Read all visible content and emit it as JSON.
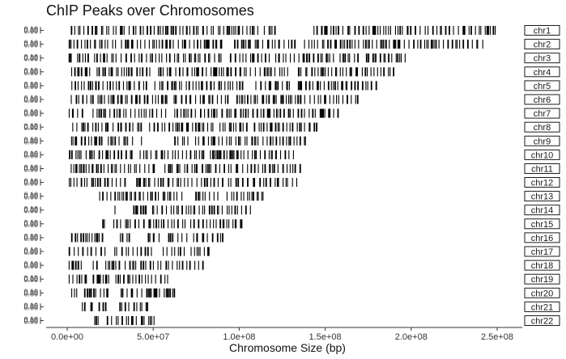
{
  "chart_data": {
    "type": "strip",
    "title": "ChIP Peaks over Chromosomes",
    "xlabel": "Chromosome Size (bp)",
    "ylabel": "",
    "xlim": [
      -25000000,
      275000000
    ],
    "x_ticks": [
      0,
      50000000,
      100000000,
      150000000,
      200000000,
      250000000
    ],
    "x_tick_labels": [
      "0.0e+00",
      "5.0e+07",
      "1.0e+08",
      "1.5e+08",
      "2.0e+08",
      "2.5e+08"
    ],
    "panel_y_tick_labels": [
      "0.00",
      "0.05",
      "0.10"
    ],
    "grid": false,
    "legend": "none",
    "color": "#000000",
    "facets": [
      {
        "chrom": "chr1",
        "start": 0,
        "end": 248956422,
        "gaps": [
          [
            44000000,
            46000000
          ],
          [
            112000000,
            113000000
          ],
          [
            121000000,
            143000000
          ],
          [
            200000000,
            201000000
          ],
          [
            222000000,
            223000000
          ],
          [
            236000000,
            237000000
          ]
        ]
      },
      {
        "chrom": "chr2",
        "start": 0,
        "end": 242193529,
        "gaps": [
          [
            28000000,
            30000000
          ],
          [
            74000000,
            75000000
          ],
          [
            90000000,
            96000000
          ],
          [
            133000000,
            137000000
          ],
          [
            193000000,
            194000000
          ],
          [
            212000000,
            213000000
          ]
        ]
      },
      {
        "chrom": "chr3",
        "start": 0,
        "end": 198295559,
        "gaps": [
          [
            4000000,
            5000000
          ],
          [
            12000000,
            13000000
          ],
          [
            90000000,
            94000000
          ],
          [
            118000000,
            121000000
          ],
          [
            155000000,
            157000000
          ],
          [
            170000000,
            171000000
          ]
        ]
      },
      {
        "chrom": "chr4",
        "start": 0,
        "end": 190214555,
        "gaps": [
          [
            14000000,
            17000000
          ],
          [
            49000000,
            52000000
          ],
          [
            60000000,
            61000000
          ],
          [
            130000000,
            134000000
          ],
          [
            150000000,
            151000000
          ]
        ]
      },
      {
        "chrom": "chr5",
        "start": 0,
        "end": 181538259,
        "gaps": [
          [
            21000000,
            23000000
          ],
          [
            46000000,
            50000000
          ],
          [
            103000000,
            108000000
          ],
          [
            131000000,
            133000000
          ],
          [
            150000000,
            151000000
          ]
        ]
      },
      {
        "chrom": "chr6",
        "start": 0,
        "end": 170805979,
        "gaps": [
          [
            58000000,
            61000000
          ],
          [
            95000000,
            97000000
          ],
          [
            138000000,
            140000000
          ]
        ]
      },
      {
        "chrom": "chr7",
        "start": 0,
        "end": 159345973,
        "gaps": [
          [
            9000000,
            13000000
          ],
          [
            58000000,
            62000000
          ],
          [
            95000000,
            97000000
          ],
          [
            130000000,
            131000000
          ]
        ]
      },
      {
        "chrom": "chr8",
        "start": 0,
        "end": 145138636,
        "gaps": [
          [
            43000000,
            47000000
          ],
          [
            85000000,
            88000000
          ],
          [
            105000000,
            107000000
          ]
        ]
      },
      {
        "chrom": "chr9",
        "start": 0,
        "end": 138394717,
        "gaps": [
          [
            20000000,
            23000000
          ],
          [
            39000000,
            42000000
          ],
          [
            43000000,
            61000000
          ],
          [
            71000000,
            73000000
          ]
        ]
      },
      {
        "chrom": "chr10",
        "start": 0,
        "end": 133797422,
        "gaps": [
          [
            39000000,
            42000000
          ],
          [
            60000000,
            61000000
          ],
          [
            80000000,
            82000000
          ]
        ]
      },
      {
        "chrom": "chr11",
        "start": 0,
        "end": 135086622,
        "gaps": [
          [
            37000000,
            38000000
          ],
          [
            51000000,
            55000000
          ],
          [
            86000000,
            88000000
          ],
          [
            100000000,
            101000000
          ]
        ]
      },
      {
        "chrom": "chr12",
        "start": 0,
        "end": 133275309,
        "gaps": [
          [
            34000000,
            38000000
          ],
          [
            90000000,
            91000000
          ],
          [
            105000000,
            107000000
          ]
        ]
      },
      {
        "chrom": "chr13",
        "start": 18000000,
        "end": 114364328,
        "gaps": [
          [
            68000000,
            74000000
          ],
          [
            80000000,
            81000000
          ],
          [
            88000000,
            92000000
          ]
        ]
      },
      {
        "chrom": "chr14",
        "start": 18000000,
        "end": 107043718,
        "gaps": [
          [
            20000000,
            25000000
          ],
          [
            28000000,
            36000000
          ],
          [
            47000000,
            49000000
          ],
          [
            74000000,
            76000000
          ]
        ]
      },
      {
        "chrom": "chr15",
        "start": 19000000,
        "end": 101991189,
        "gaps": [
          [
            22000000,
            26000000
          ],
          [
            45000000,
            47000000
          ],
          [
            69000000,
            70000000
          ]
        ]
      },
      {
        "chrom": "chr16",
        "start": 0,
        "end": 90338345,
        "gaps": [
          [
            22000000,
            30000000
          ],
          [
            36000000,
            46000000
          ],
          [
            55000000,
            57000000
          ],
          [
            70000000,
            71000000
          ]
        ]
      },
      {
        "chrom": "chr17",
        "start": 0,
        "end": 83257441,
        "gaps": [
          [
            14000000,
            15000000
          ],
          [
            22000000,
            27000000
          ],
          [
            50000000,
            55000000
          ],
          [
            70000000,
            71000000
          ]
        ]
      },
      {
        "chrom": "chr18",
        "start": 0,
        "end": 80373285,
        "gaps": [
          [
            9000000,
            14000000
          ],
          [
            17000000,
            22000000
          ],
          [
            30000000,
            33000000
          ],
          [
            61000000,
            63000000
          ]
        ]
      },
      {
        "chrom": "chr19",
        "start": 0,
        "end": 58617616,
        "gaps": [
          [
            11000000,
            14000000
          ],
          [
            24000000,
            28000000
          ]
        ]
      },
      {
        "chrom": "chr20",
        "start": 0,
        "end": 64444167,
        "gaps": [
          [
            7000000,
            9000000
          ],
          [
            24000000,
            30000000
          ],
          [
            42000000,
            43000000
          ]
        ]
      },
      {
        "chrom": "chr21",
        "start": 8000000,
        "end": 46709983,
        "gaps": [
          [
            10000000,
            13000000
          ],
          [
            16000000,
            18000000
          ],
          [
            23000000,
            30000000
          ]
        ]
      },
      {
        "chrom": "chr22",
        "start": 15000000,
        "end": 50818468,
        "gaps": [
          [
            20000000,
            21000000
          ],
          [
            38000000,
            39000000
          ]
        ]
      }
    ]
  }
}
